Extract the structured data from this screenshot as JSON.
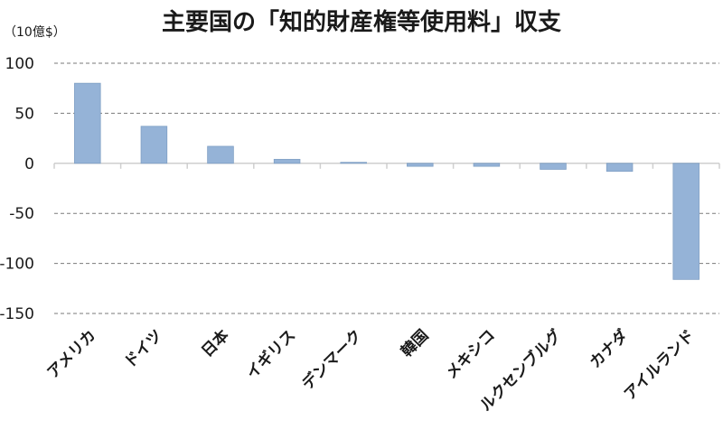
{
  "chart_data": {
    "type": "bar",
    "title": "主要国の「知的財産権等使用料」収支",
    "unit_label": "（10億$）",
    "categories": [
      "アメリカ",
      "ドイツ",
      "日本",
      "イギリス",
      "デンマーク",
      "韓国",
      "メキシコ",
      "ルクセンブルグ",
      "カナダ",
      "アイルランド"
    ],
    "values": [
      80,
      37,
      17,
      4,
      1,
      -3,
      -3,
      -6,
      -8,
      -116
    ],
    "ylim": [
      -150,
      100
    ],
    "yticks": [
      100,
      50,
      0,
      -50,
      -100,
      -150
    ],
    "grid": true,
    "colors": {
      "bar": "#95b3d7",
      "bar_edge": "#7f9fc4"
    }
  }
}
